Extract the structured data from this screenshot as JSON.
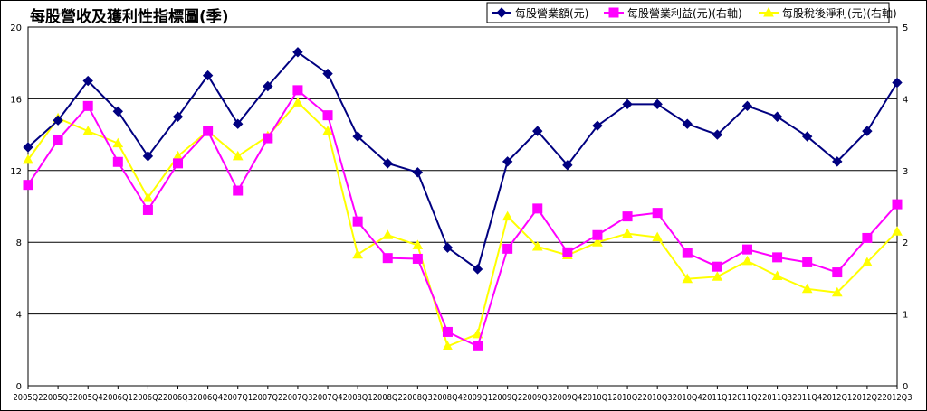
{
  "chart_data": {
    "type": "line",
    "title": "每股營收及獲利性指標圖(季)",
    "categories": [
      "2005Q2",
      "2005Q3",
      "2005Q4",
      "2006Q1",
      "2006Q2",
      "2006Q3",
      "2006Q4",
      "2007Q1",
      "2007Q2",
      "2007Q3",
      "2007Q4",
      "2008Q1",
      "2008Q2",
      "2008Q3",
      "2008Q4",
      "2009Q1",
      "2009Q2",
      "2009Q3",
      "2009Q4",
      "2010Q1",
      "2010Q2",
      "2010Q3",
      "2010Q4",
      "2011Q1",
      "2011Q2",
      "2011Q3",
      "2011Q4",
      "2012Q1",
      "2012Q2",
      "2012Q3"
    ],
    "y_left": {
      "min": 0,
      "max": 20,
      "ticks": [
        "0",
        "4",
        "8",
        "12",
        "16",
        "20"
      ]
    },
    "y_right": {
      "min": 0,
      "max": 5,
      "ticks": [
        "0",
        "1",
        "2",
        "3",
        "4",
        "5"
      ]
    },
    "grid": true,
    "legend_position": "top-right",
    "series": [
      {
        "name": "每股營業額(元)",
        "axis": "left",
        "color": "#000080",
        "marker": "diamond",
        "values": [
          13.3,
          14.8,
          17.0,
          15.3,
          12.8,
          15.0,
          17.3,
          14.6,
          16.7,
          18.6,
          17.4,
          13.9,
          12.4,
          11.9,
          7.7,
          6.5,
          12.5,
          14.2,
          12.3,
          14.5,
          15.7,
          15.7,
          14.6,
          14.0,
          15.6,
          15.0,
          13.9,
          12.5,
          14.2,
          16.9
        ]
      },
      {
        "name": "每股營業利益(元)(右軸)",
        "axis": "right",
        "color": "#ff00ff",
        "marker": "square",
        "values": [
          2.8,
          3.43,
          3.9,
          3.12,
          2.45,
          3.1,
          3.55,
          2.72,
          3.45,
          4.12,
          3.77,
          2.29,
          1.78,
          1.77,
          0.75,
          0.55,
          1.91,
          2.47,
          1.86,
          2.1,
          2.36,
          2.41,
          1.85,
          1.66,
          1.9,
          1.79,
          1.72,
          1.58,
          2.06,
          2.53
        ]
      },
      {
        "name": "每股稅後淨利(元)(右軸)",
        "axis": "right",
        "color": "#ffff00",
        "marker": "triangle",
        "values": [
          3.15,
          3.73,
          3.55,
          3.38,
          2.62,
          3.2,
          3.55,
          3.2,
          3.48,
          3.95,
          3.55,
          1.83,
          2.1,
          1.96,
          0.55,
          0.72,
          2.36,
          1.94,
          1.82,
          2.0,
          2.12,
          2.07,
          1.49,
          1.52,
          1.74,
          1.53,
          1.35,
          1.3,
          1.72,
          2.15
        ]
      }
    ]
  }
}
